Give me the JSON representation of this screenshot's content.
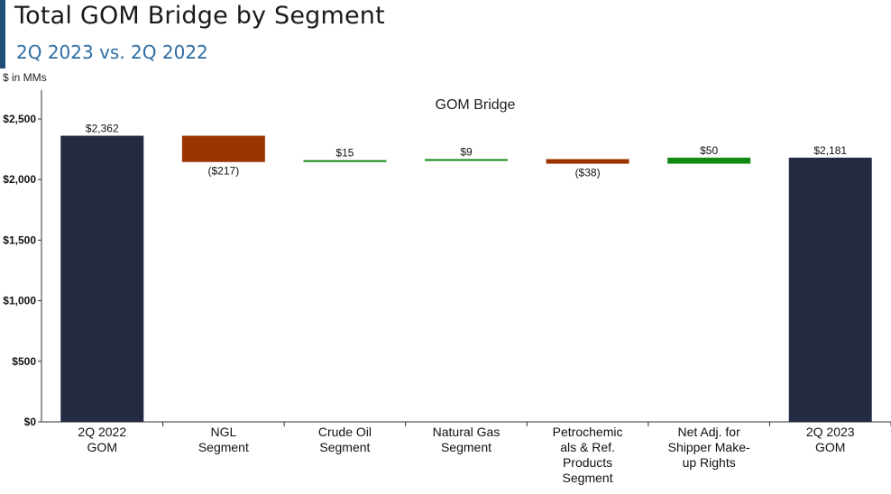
{
  "header": {
    "title": "Total GOM Bridge by Segment",
    "subtitle": "2Q 2023 vs. 2Q 2022",
    "unit_label": "$ in MMs"
  },
  "colors": {
    "accent": "#1f4e79",
    "total": "#232a42",
    "decrease": "#9b3500",
    "increase": "#138a13"
  },
  "chart_data": {
    "type": "bar",
    "subtype": "waterfall",
    "title": "GOM Bridge",
    "xlabel": "",
    "ylabel": "$ in MMs",
    "ylim": [
      0,
      2500
    ],
    "yticks": [
      0,
      500,
      1000,
      1500,
      2000,
      2500
    ],
    "ytick_labels": [
      "$0",
      "$500",
      "$1,000",
      "$1,500",
      "$2,000",
      "$2,500"
    ],
    "grid": false,
    "categories": [
      [
        "2Q 2022",
        "GOM"
      ],
      [
        "NGL",
        "Segment"
      ],
      [
        "Crude Oil",
        "Segment"
      ],
      [
        "Natural Gas",
        "Segment"
      ],
      [
        "Petrochemic",
        "als & Ref.",
        "Products",
        "Segment"
      ],
      [
        "Net Adj. for",
        "Shipper Make-",
        "up Rights"
      ],
      [
        "2Q 2023",
        "GOM"
      ]
    ],
    "values": [
      2362,
      -217,
      15,
      9,
      -38,
      50,
      2181
    ],
    "kinds": [
      "total",
      "decrease",
      "increase",
      "increase",
      "decrease",
      "increase",
      "total"
    ],
    "data_labels": [
      "$2,362",
      "($217)",
      "$15",
      "$9",
      "($38)",
      "$50",
      "$2,181"
    ]
  }
}
